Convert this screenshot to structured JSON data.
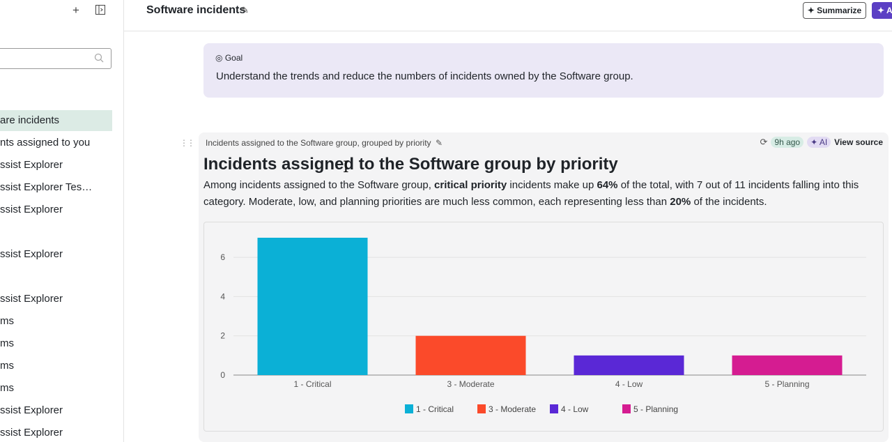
{
  "sidebar": {
    "add_icon": "plus-icon",
    "panel_icon": "panel-toggle-icon",
    "search": {
      "placeholder": "",
      "icon": "search-icon"
    },
    "items": [
      {
        "label": "are incidents",
        "active": true
      },
      {
        "label": "nts assigned to you"
      },
      {
        "label": "ssist Explorer"
      },
      {
        "label": "ssist Explorer Tes…"
      },
      {
        "label": "ssist Explorer"
      },
      {
        "label": "ssist Explorer"
      },
      {
        "label": "ssist Explorer"
      },
      {
        "label": "ms"
      },
      {
        "label": "ms"
      },
      {
        "label": "ms"
      },
      {
        "label": "ms"
      },
      {
        "label": "ssist Explorer"
      },
      {
        "label": "ssist Explorer"
      }
    ]
  },
  "header": {
    "title": "Software incidents",
    "summarize_label": "Summarize",
    "ai_label": "A"
  },
  "goal": {
    "label": "Goal",
    "text": "Understand the trends and reduce the numbers of incidents owned by the Software group."
  },
  "card": {
    "subtitle": "Incidents assigned to the Software group, grouped by priority",
    "time_badge": "9h ago",
    "ai_badge": "AI",
    "view_source": "View source",
    "title": "Incidents assigned to the Software group by priority",
    "desc_parts": [
      {
        "text": "Among incidents assigned to the Software group, ",
        "bold": false
      },
      {
        "text": "critical priority",
        "bold": true
      },
      {
        "text": " incidents make up ",
        "bold": false
      },
      {
        "text": "64%",
        "bold": true
      },
      {
        "text": " of the total, with 7 out of 11 incidents falling into this category. Moderate, low, and planning priorities are much less common, each representing less than ",
        "bold": false
      },
      {
        "text": "20%",
        "bold": true
      },
      {
        "text": " of the incidents.",
        "bold": false
      }
    ]
  },
  "chart_data": {
    "type": "bar",
    "categories": [
      "1 - Critical",
      "3 - Moderate",
      "4 - Low",
      "5 - Planning"
    ],
    "values": [
      7,
      2,
      1,
      1
    ],
    "colors": [
      "#0bb0d6",
      "#fb4a2a",
      "#5a28d6",
      "#d51c91"
    ],
    "ylim": [
      0,
      7
    ],
    "yticks": [
      0,
      2,
      4,
      6
    ],
    "legend": "bottom",
    "grid": true
  }
}
